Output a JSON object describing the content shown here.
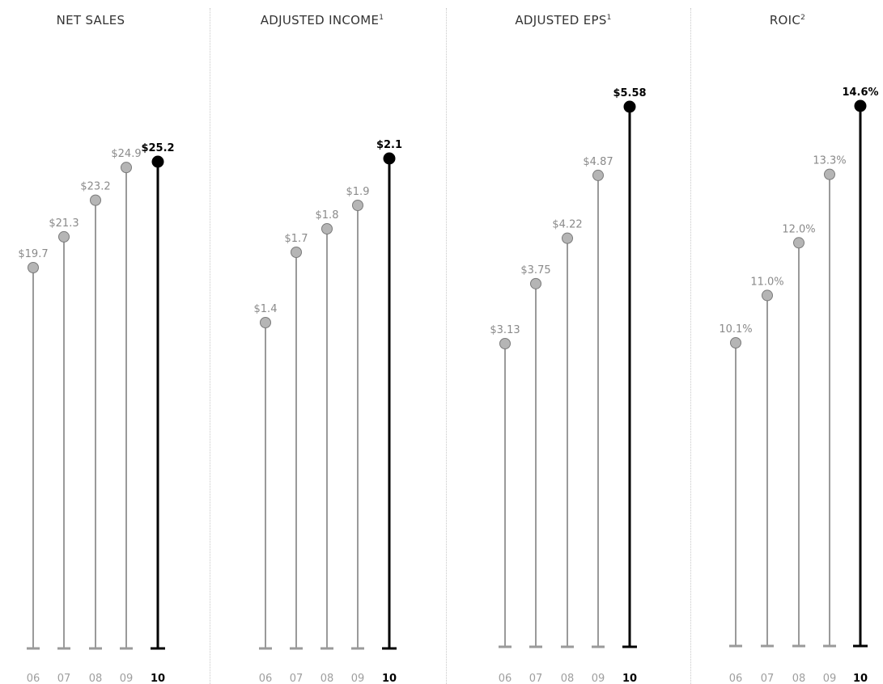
{
  "colors": {
    "past": "#9a9a9a",
    "past_text": "#8a8a8a",
    "current": "#000000",
    "divider": "#c8c8c8"
  },
  "chart_data": [
    {
      "type": "lollipop",
      "title": "NET SALES",
      "title_sup": "",
      "categories": [
        "06",
        "07",
        "08",
        "09",
        "10"
      ],
      "values": [
        19.7,
        21.3,
        23.2,
        24.9,
        25.2
      ],
      "labels": [
        "$19.7",
        "$21.3",
        "$23.2",
        "$24.9",
        "$25.2"
      ],
      "highlight_index": 4
    },
    {
      "type": "lollipop",
      "title": "ADJUSTED INCOME",
      "title_sup": "1",
      "categories": [
        "06",
        "07",
        "08",
        "09",
        "10"
      ],
      "values": [
        1.4,
        1.7,
        1.8,
        1.9,
        2.1
      ],
      "labels": [
        "$1.4",
        "$1.7",
        "$1.8",
        "$1.9",
        "$2.1"
      ],
      "highlight_index": 4
    },
    {
      "type": "lollipop",
      "title": "ADJUSTED EPS",
      "title_sup": "1",
      "categories": [
        "06",
        "07",
        "08",
        "09",
        "10"
      ],
      "values": [
        3.13,
        3.75,
        4.22,
        4.87,
        5.58
      ],
      "labels": [
        "$3.13",
        "$3.75",
        "$4.22",
        "$4.87",
        "$5.58"
      ],
      "highlight_index": 4
    },
    {
      "type": "lollipop",
      "title": "ROIC",
      "title_sup": "2",
      "categories": [
        "06",
        "07",
        "08",
        "09",
        "10"
      ],
      "values": [
        10.1,
        11.0,
        12.0,
        13.3,
        14.6
      ],
      "labels": [
        "10.1%",
        "11.0%",
        "12.0%",
        "13.3%",
        "14.6%"
      ],
      "highlight_index": 4
    }
  ]
}
